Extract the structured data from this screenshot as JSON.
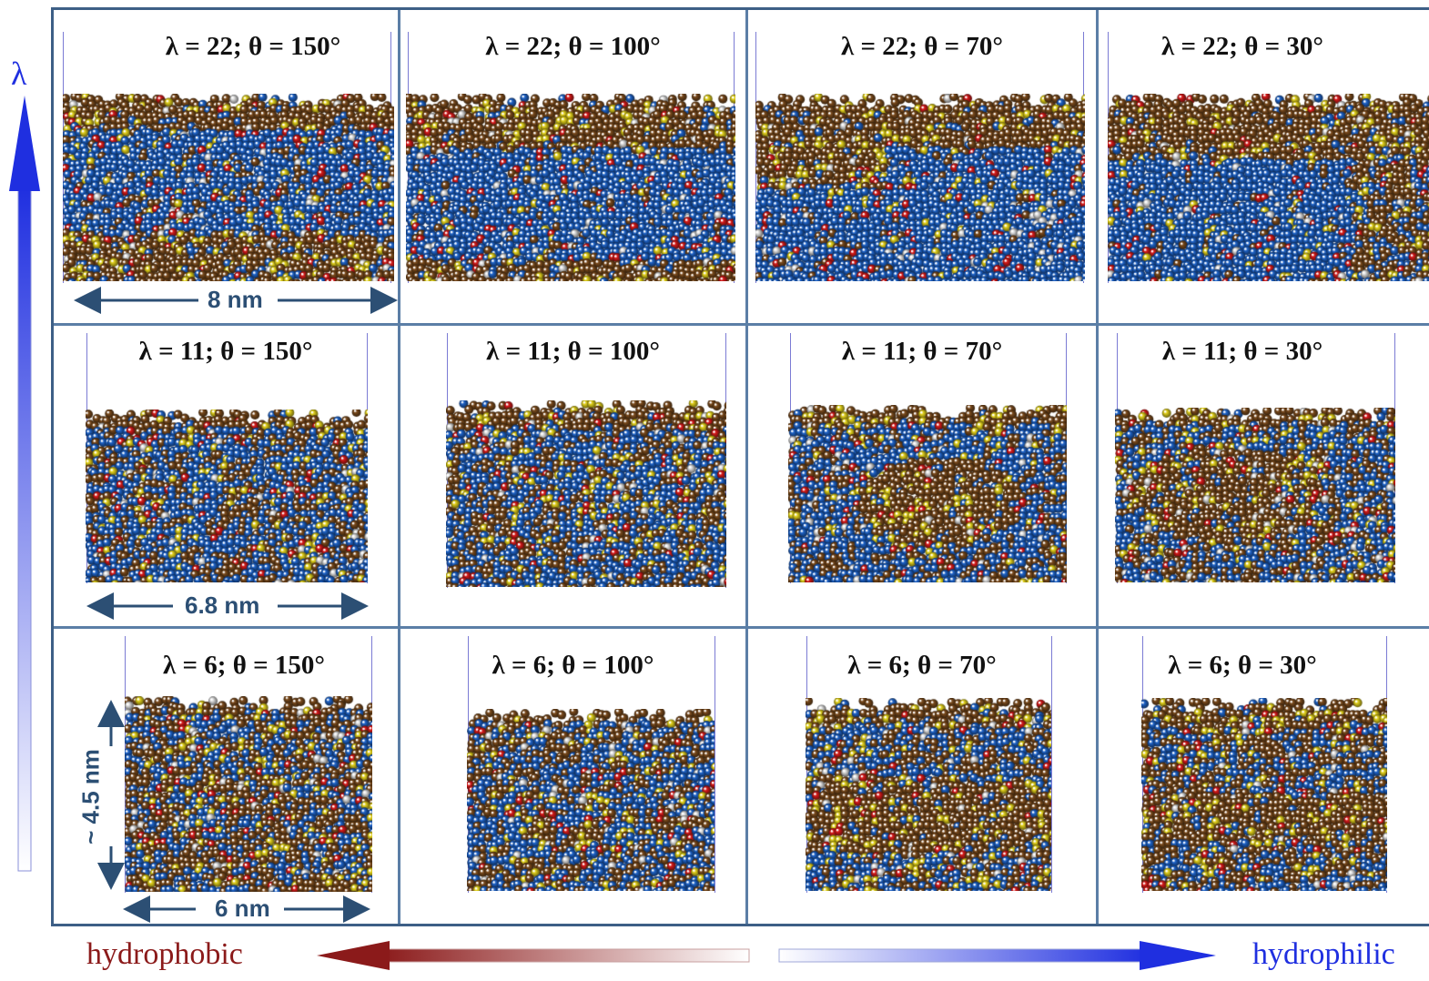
{
  "axis": {
    "vertical_label": "λ",
    "left_label": "hydrophobic",
    "right_label": "hydrophilic"
  },
  "colors": {
    "hydrophobic": "#8b1a1a",
    "hydrophilic": "#1f2fe0",
    "grid": "#5b7ea6",
    "polymer": "#7a4a1c",
    "water": "#1e63c8",
    "sulfur": "#e3d21c",
    "oxygen": "#d61a1a",
    "hydrogen": "#dcdcdc"
  },
  "scale_bars": {
    "row1": "8 nm",
    "row2": "6.8 nm",
    "row3_horizontal": "6 nm",
    "row3_vertical": "~ 4.5 nm"
  },
  "rows": [
    {
      "lambda": 22,
      "cells": [
        {
          "label": "λ = 22; θ = 150°",
          "theta": 150
        },
        {
          "label": "λ = 22; θ = 100°",
          "theta": 100
        },
        {
          "label": "λ = 22; θ = 70°",
          "theta": 70
        },
        {
          "label": "λ = 22; θ = 30°",
          "theta": 30
        }
      ]
    },
    {
      "lambda": 11,
      "cells": [
        {
          "label": "λ = 11; θ = 150°",
          "theta": 150
        },
        {
          "label": "λ = 11; θ = 100°",
          "theta": 100
        },
        {
          "label": "λ = 11; θ = 70°",
          "theta": 70
        },
        {
          "label": "λ = 11; θ = 30°",
          "theta": 30
        }
      ]
    },
    {
      "lambda": 6,
      "cells": [
        {
          "label": "λ = 6; θ = 150°",
          "theta": 150
        },
        {
          "label": "λ = 6; θ = 100°",
          "theta": 100
        },
        {
          "label": "λ = 6; θ = 70°",
          "theta": 70
        },
        {
          "label": "λ = 6; θ = 30°",
          "theta": 30
        }
      ]
    }
  ]
}
